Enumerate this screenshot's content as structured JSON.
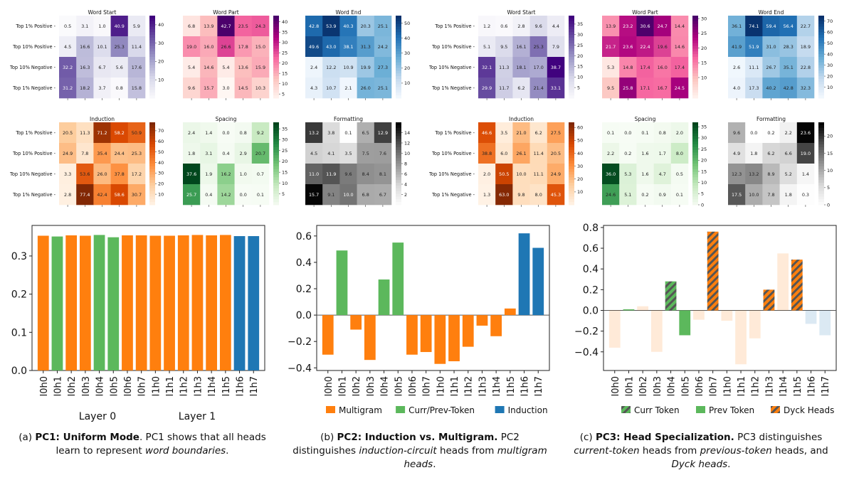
{
  "rows": [
    "Top 1% Positive",
    "Top 10% Positive",
    "Top 10% Negative",
    "Top 1% Negative"
  ],
  "heatmap_groups": [
    {
      "panels": [
        {
          "title": "Word Start",
          "cmap": "purple",
          "ticks": [
            "40",
            "30",
            "20",
            "10"
          ],
          "tickVals": [
            40,
            30,
            20,
            10
          ],
          "vmin": 0,
          "vmax": 45,
          "values": [
            [
              0.5,
              3.1,
              1.0,
              40.9,
              5.9
            ],
            [
              4.5,
              16.6,
              10.1,
              25.3,
              11.4
            ],
            [
              32.2,
              16.3,
              6.7,
              5.6,
              17.6
            ],
            [
              31.2,
              18.2,
              3.7,
              0.8,
              15.8
            ]
          ]
        },
        {
          "title": "Word Part",
          "cmap": "pink",
          "ticks": [
            "40",
            "35",
            "30",
            "25",
            "20",
            "15",
            "10",
            "5"
          ],
          "tickVals": [
            40,
            35,
            30,
            25,
            20,
            15,
            10,
            5
          ],
          "vmin": 3,
          "vmax": 43,
          "values": [
            [
              6.8,
              13.9,
              42.7,
              23.5,
              24.3
            ],
            [
              19.0,
              16.0,
              26.6,
              17.8,
              15.0
            ],
            [
              5.4,
              14.6,
              5.4,
              13.6,
              15.9
            ],
            [
              9.6,
              15.7,
              3.0,
              14.5,
              10.3
            ]
          ]
        },
        {
          "title": "Word End",
          "cmap": "blue",
          "ticks": [
            "50",
            "40",
            "30",
            "20",
            "10"
          ],
          "tickVals": [
            50,
            40,
            30,
            20,
            10
          ],
          "vmin": 0,
          "vmax": 55,
          "values": [
            [
              42.8,
              53.9,
              40.3,
              20.3,
              25.1
            ],
            [
              49.6,
              43.0,
              38.1,
              31.3,
              24.2
            ],
            [
              2.4,
              12.2,
              10.9,
              19.9,
              27.3
            ],
            [
              4.3,
              10.7,
              2.1,
              26.0,
              25.1
            ]
          ]
        },
        {
          "title": "Induction",
          "cmap": "orange",
          "ticks": [
            "70",
            "60",
            "50",
            "40",
            "30",
            "20",
            "10"
          ],
          "tickVals": [
            70,
            60,
            50,
            40,
            30,
            20,
            10
          ],
          "vmin": 0,
          "vmax": 78,
          "values": [
            [
              20.5,
              11.3,
              71.2,
              58.2,
              50.9
            ],
            [
              24.9,
              7.8,
              35.4,
              24.4,
              25.3
            ],
            [
              3.3,
              53.6,
              26.0,
              37.8,
              17.2
            ],
            [
              2.8,
              77.4,
              42.4,
              58.6,
              30.7
            ]
          ]
        },
        {
          "title": "Spacing",
          "cmap": "green",
          "ticks": [
            "35",
            "30",
            "25",
            "20",
            "15",
            "10",
            "5"
          ],
          "tickVals": [
            35,
            30,
            25,
            20,
            15,
            10,
            5
          ],
          "vmin": 0,
          "vmax": 38,
          "values": [
            [
              2.4,
              1.4,
              0.0,
              0.8,
              9.2
            ],
            [
              1.8,
              3.1,
              0.4,
              2.9,
              20.7
            ],
            [
              37.6,
              1.9,
              16.2,
              1.0,
              0.7
            ],
            [
              25.7,
              0.4,
              14.2,
              0.0,
              0.1
            ]
          ]
        },
        {
          "title": "Formatting",
          "cmap": "gray",
          "ticks": [
            "14",
            "12",
            "10",
            "8",
            "6",
            "4",
            "2"
          ],
          "tickVals": [
            14,
            12,
            10,
            8,
            6,
            4,
            2
          ],
          "vmin": 0,
          "vmax": 16,
          "values": [
            [
              13.2,
              3.8,
              0.1,
              6.5,
              12.9
            ],
            [
              4.5,
              4.1,
              3.5,
              7.5,
              7.6
            ],
            [
              11.0,
              11.9,
              9.6,
              8.4,
              8.1
            ],
            [
              15.7,
              9.1,
              10.0,
              6.8,
              6.7
            ]
          ]
        }
      ]
    },
    {
      "panels": [
        {
          "title": "Word Start",
          "cmap": "purple",
          "ticks": [
            "35",
            "30",
            "25",
            "20",
            "15",
            "10",
            "5"
          ],
          "tickVals": [
            35,
            30,
            25,
            20,
            15,
            10,
            5
          ],
          "vmin": 0,
          "vmax": 39,
          "values": [
            [
              1.2,
              0.6,
              2.8,
              9.6,
              4.4
            ],
            [
              5.1,
              9.5,
              16.1,
              25.3,
              7.9
            ],
            [
              32.1,
              11.3,
              18.1,
              17.0,
              38.7
            ],
            [
              29.9,
              11.7,
              6.2,
              21.4,
              33.1
            ]
          ]
        },
        {
          "title": "Word Part",
          "cmap": "pink",
          "ticks": [
            "30",
            "25",
            "20",
            "15",
            "10"
          ],
          "tickVals": [
            30,
            25,
            20,
            15,
            10
          ],
          "vmin": 3,
          "vmax": 31,
          "values": [
            [
              13.9,
              23.2,
              30.6,
              24.7,
              14.4
            ],
            [
              21.7,
              23.6,
              22.4,
              19.6,
              14.6
            ],
            [
              5.3,
              14.8,
              17.4,
              16.0,
              17.4
            ],
            [
              9.5,
              25.8,
              17.1,
              16.7,
              24.5
            ]
          ]
        },
        {
          "title": "Word End",
          "cmap": "blue",
          "ticks": [
            "70",
            "60",
            "50",
            "40",
            "30",
            "20",
            "10"
          ],
          "tickVals": [
            70,
            60,
            50,
            40,
            30,
            20,
            10
          ],
          "vmin": 0,
          "vmax": 75,
          "values": [
            [
              36.1,
              74.1,
              59.4,
              56.4,
              22.7
            ],
            [
              41.9,
              51.9,
              31.0,
              28.3,
              18.9
            ],
            [
              2.6,
              11.1,
              26.7,
              35.1,
              22.8
            ],
            [
              4.0,
              17.3,
              40.2,
              42.8,
              32.3
            ]
          ]
        },
        {
          "title": "Induction",
          "cmap": "orange",
          "ticks": [
            "60",
            "50",
            "40",
            "30",
            "20",
            "10"
          ],
          "tickVals": [
            60,
            50,
            40,
            30,
            20,
            10
          ],
          "vmin": 0,
          "vmax": 64,
          "values": [
            [
              46.6,
              3.5,
              21.0,
              6.2,
              27.5
            ],
            [
              38.8,
              6.0,
              26.1,
              11.4,
              20.5
            ],
            [
              2.0,
              50.5,
              10.0,
              11.1,
              24.9
            ],
            [
              1.3,
              63.0,
              9.8,
              8.0,
              45.3
            ]
          ]
        },
        {
          "title": "Spacing",
          "cmap": "green",
          "ticks": [
            "35",
            "30",
            "25",
            "20",
            "15",
            "10",
            "5",
            "0"
          ],
          "tickVals": [
            35,
            30,
            25,
            20,
            15,
            10,
            5,
            0
          ],
          "vmin": 0,
          "vmax": 37,
          "values": [
            [
              0.1,
              0.0,
              0.1,
              0.8,
              2.0
            ],
            [
              2.2,
              0.2,
              1.6,
              1.7,
              8.0
            ],
            [
              36.0,
              5.3,
              1.6,
              4.7,
              0.5
            ],
            [
              24.6,
              5.1,
              0.2,
              0.9,
              0.1
            ]
          ]
        },
        {
          "title": "Formatting",
          "cmap": "gray",
          "ticks": [
            "20",
            "15",
            "10",
            "5",
            "0"
          ],
          "tickVals": [
            20,
            15,
            10,
            5,
            0
          ],
          "vmin": 0,
          "vmax": 24,
          "values": [
            [
              9.6,
              0.0,
              0.2,
              2.2,
              23.6
            ],
            [
              4.9,
              1.8,
              6.2,
              6.6,
              19.0
            ],
            [
              12.3,
              13.2,
              8.9,
              5.2,
              1.4
            ],
            [
              17.5,
              10.0,
              7.8,
              1.8,
              0.3
            ]
          ]
        }
      ]
    }
  ],
  "chart_data": [
    {
      "type": "bar",
      "categories": [
        "l0h0",
        "l0h1",
        "l0h2",
        "l0h3",
        "l0h4",
        "l0h5",
        "l0h6",
        "l0h7",
        "l1h0",
        "l1h1",
        "l1h2",
        "l1h3",
        "l1h4",
        "l1h5",
        "l1h6",
        "l1h7"
      ],
      "values": [
        0.353,
        0.351,
        0.354,
        0.353,
        0.355,
        0.349,
        0.354,
        0.354,
        0.353,
        0.353,
        0.354,
        0.355,
        0.354,
        0.355,
        0.352,
        0.352
      ],
      "bar_colors": [
        "#ff7f0e",
        "#5cb85c",
        "#ff7f0e",
        "#ff7f0e",
        "#5cb85c",
        "#5cb85c",
        "#ff7f0e",
        "#ff7f0e",
        "#ff7f0e",
        "#ff7f0e",
        "#ff7f0e",
        "#ff7f0e",
        "#ff7f0e",
        "#ff7f0e",
        "#1f77b4",
        "#1f77b4"
      ],
      "ylim": [
        0,
        0.38
      ],
      "yticks": [
        0.0,
        0.1,
        0.2,
        0.3
      ],
      "ytick_labels": [
        "0.0",
        "0.1",
        "0.2",
        "0.3"
      ],
      "group_labels": [
        "Layer 0",
        "Layer 1"
      ]
    },
    {
      "type": "bar",
      "categories": [
        "l0h0",
        "l0h1",
        "l0h2",
        "l0h3",
        "l0h4",
        "l0h5",
        "l0h6",
        "l0h7",
        "l1h0",
        "l1h1",
        "l1h2",
        "l1h3",
        "l1h4",
        "l1h5",
        "l1h6",
        "l1h7"
      ],
      "values": [
        -0.3,
        0.49,
        -0.11,
        -0.34,
        0.27,
        0.55,
        -0.3,
        -0.28,
        -0.37,
        -0.35,
        -0.24,
        -0.08,
        -0.16,
        0.05,
        0.62,
        0.51
      ],
      "bar_colors": [
        "#ff7f0e",
        "#5cb85c",
        "#ff7f0e",
        "#ff7f0e",
        "#5cb85c",
        "#5cb85c",
        "#ff7f0e",
        "#ff7f0e",
        "#ff7f0e",
        "#ff7f0e",
        "#ff7f0e",
        "#ff7f0e",
        "#ff7f0e",
        "#ff7f0e",
        "#1f77b4",
        "#1f77b4"
      ],
      "ylim": [
        -0.42,
        0.68
      ],
      "yticks": [
        -0.4,
        -0.2,
        0.0,
        0.2,
        0.4,
        0.6
      ],
      "ytick_labels": [
        "−0.4",
        "−0.2",
        "0.0",
        "0.2",
        "0.4",
        "0.6"
      ],
      "legend": [
        {
          "label": "Multigram",
          "color": "#ff7f0e"
        },
        {
          "label": "Curr/Prev-Token",
          "color": "#5cb85c"
        },
        {
          "label": "Induction",
          "color": "#1f77b4"
        }
      ]
    },
    {
      "type": "bar",
      "categories": [
        "l0h0",
        "l0h1",
        "l0h2",
        "l0h3",
        "l0h4",
        "l0h5",
        "l0h6",
        "l0h7",
        "l1h0",
        "l1h1",
        "l1h2",
        "l1h3",
        "l1h4",
        "l1h5",
        "l1h6",
        "l1h7"
      ],
      "values": [
        -0.36,
        0.01,
        0.04,
        -0.4,
        0.28,
        -0.24,
        -0.09,
        0.76,
        -0.1,
        -0.52,
        -0.27,
        0.2,
        0.55,
        0.49,
        -0.13,
        -0.24
      ],
      "bar_styles": [
        "faint-orange",
        "green",
        "faint-orange",
        "faint-orange",
        "green-hatch",
        "green",
        "faint-orange",
        "orange-hatch",
        "faint-orange",
        "faint-orange",
        "faint-orange",
        "orange-hatch",
        "faint-orange",
        "orange-hatch",
        "faint-blue",
        "faint-blue"
      ],
      "ylim": [
        -0.58,
        0.82
      ],
      "yticks": [
        -0.4,
        -0.2,
        0.0,
        0.2,
        0.4,
        0.6,
        0.8
      ],
      "ytick_labels": [
        "−0.4",
        "−0.2",
        "0.0",
        "0.2",
        "0.4",
        "0.6",
        "0.8"
      ],
      "legend": [
        {
          "label": "Curr Token",
          "style": "green-hatch"
        },
        {
          "label": "Prev Token",
          "style": "green"
        },
        {
          "label": "Dyck Heads",
          "style": "orange-hatch"
        }
      ]
    }
  ],
  "captions": {
    "a": {
      "prefix": "(a) ",
      "bold": "PC1: Uniform Mode",
      "t1": ". PC1 shows that all heads learn to represent ",
      "i1": "word boundaries",
      "t2": "."
    },
    "b": {
      "prefix": "(b) ",
      "bold": "PC2: Induction vs. Multigram.",
      "t1": " PC2 distinguishes ",
      "i1": "induction-circuit",
      "t2": " heads from ",
      "i2": "multigram heads",
      "t3": "."
    },
    "c": {
      "prefix": "(c) ",
      "bold": "PC3: Head Specialization.",
      "t1": " PC3 distinguishes ",
      "i1": "current-token",
      "t2": " heads from ",
      "i2": "previous-token",
      "t3": " heads, and ",
      "i3": "Dyck heads",
      "t4": "."
    }
  }
}
